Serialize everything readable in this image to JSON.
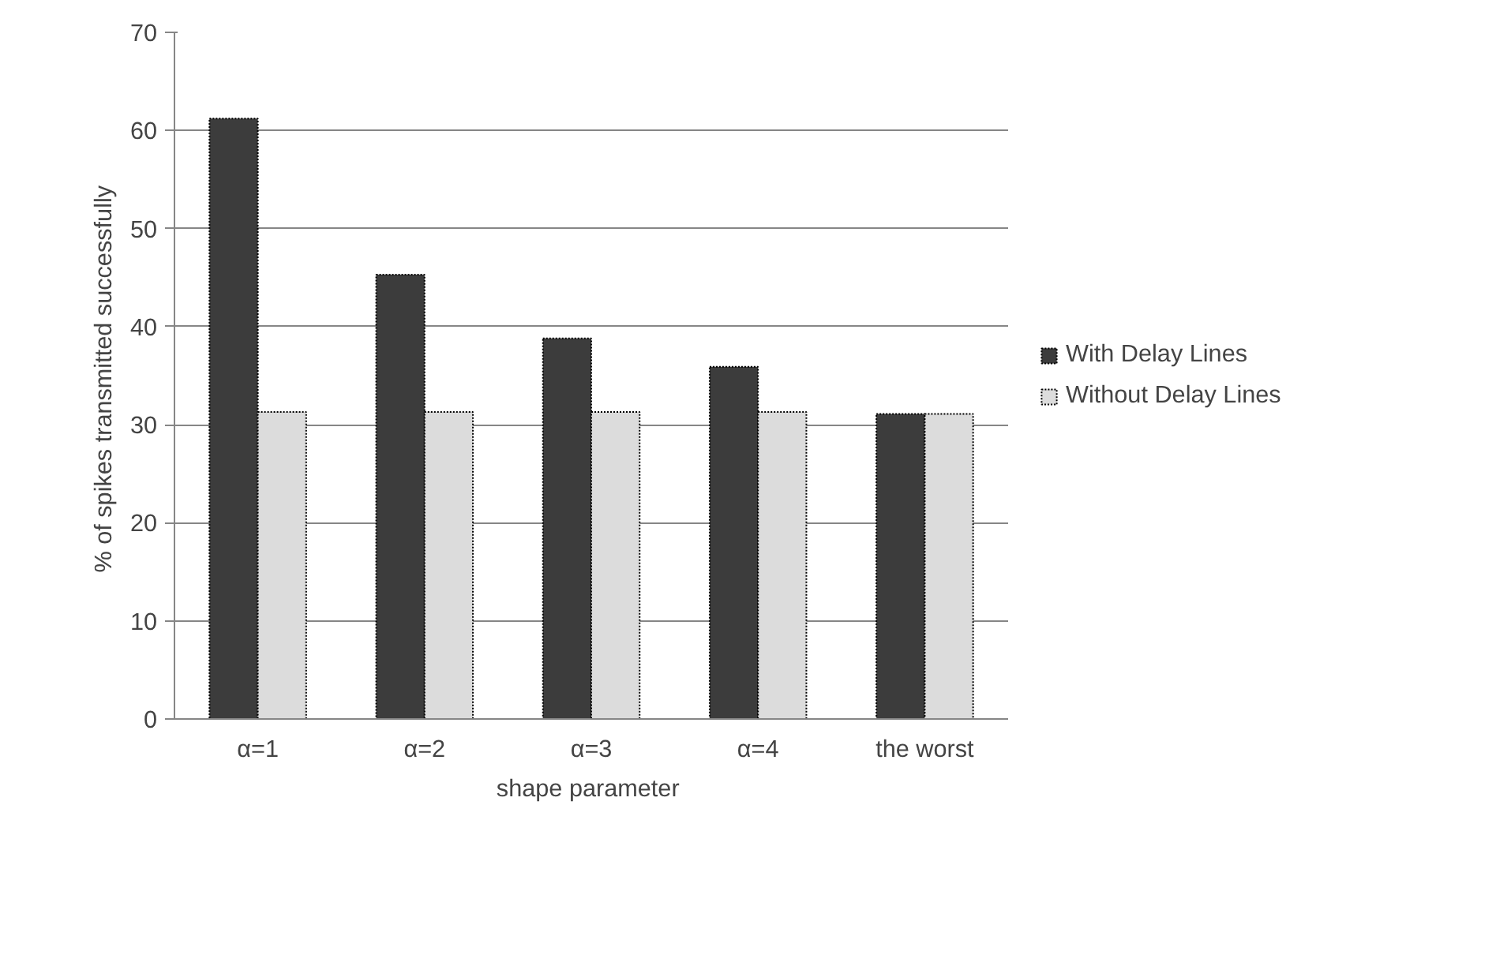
{
  "chart_data": {
    "type": "bar",
    "xlabel": "shape  parameter",
    "ylabel": "% of spikes  transmitted successfully",
    "categories": [
      "α=1",
      "α=2",
      "α=3",
      "α=4",
      "the worst"
    ],
    "series": [
      {
        "name": "With Delay Lines",
        "color": "#3c3c3c",
        "values": [
          61.2,
          45.3,
          38.8,
          35.9,
          31.1
        ]
      },
      {
        "name": "Without Delay Lines",
        "color": "#dcdcdc",
        "values": [
          31.3,
          31.3,
          31.3,
          31.3,
          31.1
        ]
      }
    ],
    "ylim": [
      0,
      70
    ],
    "yticks": [
      0,
      10,
      20,
      30,
      40,
      50,
      60,
      70
    ],
    "grid": "y",
    "legend": "right"
  }
}
